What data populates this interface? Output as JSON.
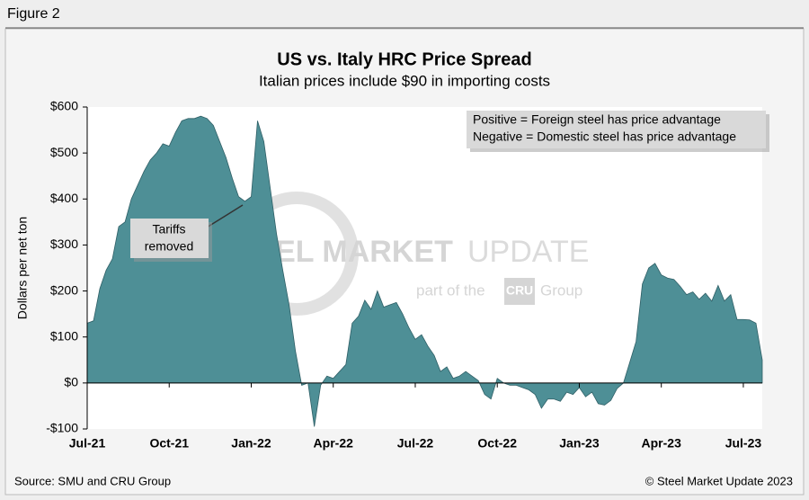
{
  "figure_label": "Figure 2",
  "source": "Source: SMU and CRU Group",
  "copyright": "© Steel Market Update 2023",
  "watermark": {
    "brand_bold": "STEEL MARKET",
    "brand_light": "UPDATE",
    "tagline": "part of the",
    "logo": "CRU",
    "group": "Group"
  },
  "chart_data": {
    "type": "area",
    "title": "US vs. Italy HRC Price Spread",
    "subtitle": "Italian prices include $90 in importing costs",
    "y_label": "Dollars per net ton",
    "legend_note": [
      "Positive = Foreign steel has price advantage",
      "Negative = Domestic steel has price advantage"
    ],
    "annotation": [
      "Tariffs",
      "removed"
    ],
    "color": "#4e8f96",
    "categories": [
      "Jul-21",
      null,
      null,
      null,
      null,
      null,
      null,
      null,
      null,
      null,
      null,
      null,
      null,
      "Oct-21",
      null,
      null,
      null,
      null,
      null,
      null,
      null,
      null,
      null,
      null,
      null,
      null,
      "Jan-22",
      null,
      null,
      null,
      null,
      null,
      null,
      null,
      null,
      null,
      null,
      null,
      null,
      "Apr-22",
      null,
      null,
      null,
      null,
      null,
      null,
      null,
      null,
      null,
      null,
      null,
      null,
      "Jul-22",
      null,
      null,
      null,
      null,
      null,
      null,
      null,
      null,
      null,
      null,
      null,
      null,
      "Oct-22",
      null,
      null,
      null,
      null,
      null,
      null,
      null,
      null,
      null,
      null,
      null,
      null,
      "Jan-23",
      null,
      null,
      null,
      null,
      null,
      null,
      null,
      null,
      null,
      null,
      null,
      null,
      "Apr-23",
      null,
      null,
      null,
      null,
      null,
      null,
      null,
      null,
      null,
      null,
      null,
      null,
      "Jul-23",
      null,
      null,
      null
    ],
    "values": [
      130,
      135,
      205,
      245,
      270,
      340,
      350,
      400,
      430,
      460,
      485,
      500,
      520,
      515,
      545,
      570,
      575,
      575,
      580,
      575,
      560,
      525,
      490,
      445,
      405,
      395,
      405,
      570,
      525,
      425,
      325,
      245,
      170,
      70,
      -5,
      0,
      -95,
      -5,
      15,
      10,
      25,
      40,
      130,
      145,
      180,
      160,
      200,
      165,
      170,
      175,
      150,
      120,
      95,
      105,
      80,
      60,
      25,
      35,
      10,
      15,
      25,
      15,
      5,
      -25,
      -35,
      10,
      0,
      -5,
      -5,
      -10,
      -15,
      -25,
      -55,
      -35,
      -35,
      -40,
      -20,
      -25,
      -10,
      -30,
      -20,
      -45,
      -48,
      -38,
      -12,
      0,
      45,
      90,
      215,
      250,
      260,
      235,
      228,
      225,
      210,
      192,
      198,
      182,
      195,
      178,
      212,
      178,
      192,
      138,
      138,
      137,
      130,
      50
    ],
    "ylim": [
      -100,
      600
    ],
    "yticks": [
      {
        "value": -100,
        "label": "-$100"
      },
      {
        "value": 0,
        "label": "$0"
      },
      {
        "value": 100,
        "label": "$100"
      },
      {
        "value": 200,
        "label": "$200"
      },
      {
        "value": 300,
        "label": "$300"
      },
      {
        "value": 400,
        "label": "$400"
      },
      {
        "value": 500,
        "label": "$500"
      },
      {
        "value": 600,
        "label": "$600"
      }
    ],
    "grid": false
  }
}
